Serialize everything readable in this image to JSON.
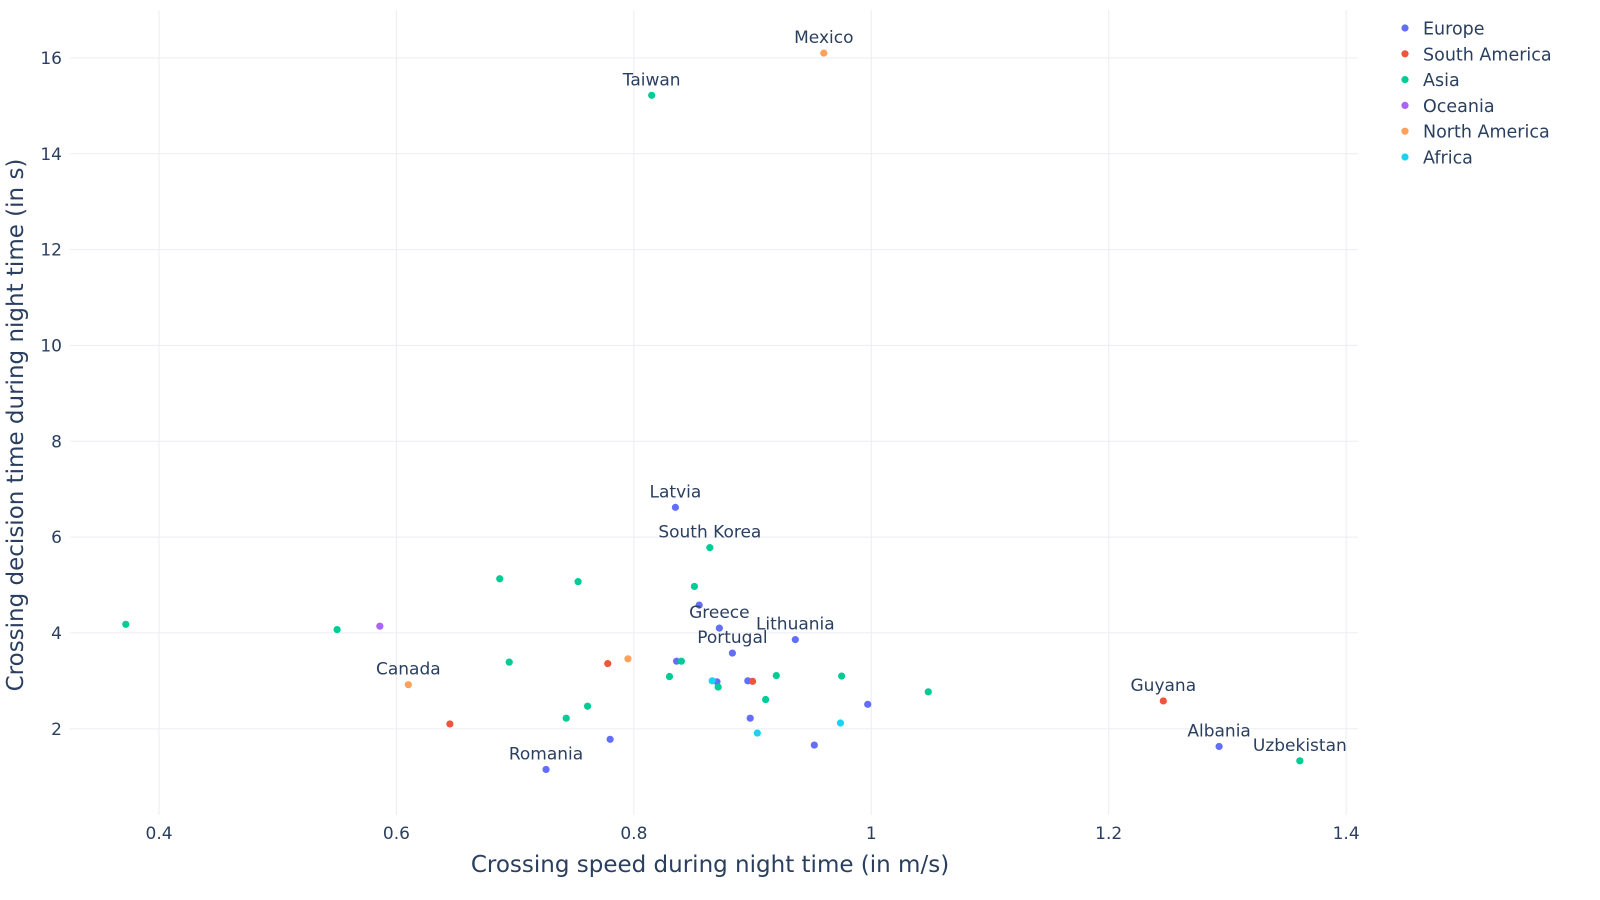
{
  "chart_data": {
    "type": "scatter",
    "title": "",
    "xlabel": "Crossing speed during night time (in m/s)",
    "ylabel": "Crossing decision time during night time (in s)",
    "xlim": [
      0.325,
      1.41
    ],
    "ylim": [
      0.2,
      17.0
    ],
    "xticks": [
      {
        "value": 0.4,
        "label": "0.4"
      },
      {
        "value": 0.6,
        "label": "0.6"
      },
      {
        "value": 0.8,
        "label": "0.8"
      },
      {
        "value": 1.0,
        "label": "1"
      },
      {
        "value": 1.2,
        "label": "1.2"
      },
      {
        "value": 1.4,
        "label": "1.4"
      }
    ],
    "yticks": [
      {
        "value": 2,
        "label": "2"
      },
      {
        "value": 4,
        "label": "4"
      },
      {
        "value": 6,
        "label": "6"
      },
      {
        "value": 8,
        "label": "8"
      },
      {
        "value": 10,
        "label": "10"
      },
      {
        "value": 12,
        "label": "12"
      },
      {
        "value": 14,
        "label": "14"
      },
      {
        "value": 16,
        "label": "16"
      }
    ],
    "grid": true,
    "legend_position": "top-right",
    "series": [
      {
        "name": "Europe",
        "color": "#636efa",
        "points": [
          {
            "x": 0.835,
            "y": 6.62,
            "label": "Latvia"
          },
          {
            "x": 0.855,
            "y": 4.58
          },
          {
            "x": 0.872,
            "y": 4.1,
            "label": "Greece"
          },
          {
            "x": 0.883,
            "y": 3.58,
            "label": "Portugal"
          },
          {
            "x": 0.936,
            "y": 3.86,
            "label": "Lithuania"
          },
          {
            "x": 0.836,
            "y": 3.41
          },
          {
            "x": 0.87,
            "y": 2.98
          },
          {
            "x": 0.896,
            "y": 3.0
          },
          {
            "x": 0.898,
            "y": 2.22
          },
          {
            "x": 0.997,
            "y": 2.51
          },
          {
            "x": 0.952,
            "y": 1.66
          },
          {
            "x": 0.78,
            "y": 1.78
          },
          {
            "x": 0.726,
            "y": 1.15,
            "label": "Romania"
          },
          {
            "x": 1.293,
            "y": 1.63,
            "label": "Albania"
          }
        ]
      },
      {
        "name": "South America",
        "color": "#EF553B",
        "points": [
          {
            "x": 0.778,
            "y": 3.36
          },
          {
            "x": 0.9,
            "y": 2.99
          },
          {
            "x": 0.645,
            "y": 2.1
          },
          {
            "x": 1.246,
            "y": 2.58,
            "label": "Guyana"
          }
        ]
      },
      {
        "name": "Asia",
        "color": "#00cc96",
        "points": [
          {
            "x": 0.815,
            "y": 15.22,
            "label": "Taiwan"
          },
          {
            "x": 0.864,
            "y": 5.78,
            "label": "South Korea"
          },
          {
            "x": 0.687,
            "y": 5.13
          },
          {
            "x": 0.753,
            "y": 5.07
          },
          {
            "x": 0.851,
            "y": 4.97
          },
          {
            "x": 0.372,
            "y": 4.18
          },
          {
            "x": 0.55,
            "y": 4.07
          },
          {
            "x": 0.695,
            "y": 3.39
          },
          {
            "x": 0.84,
            "y": 3.41
          },
          {
            "x": 0.83,
            "y": 3.09
          },
          {
            "x": 0.92,
            "y": 3.11
          },
          {
            "x": 0.975,
            "y": 3.1
          },
          {
            "x": 0.871,
            "y": 2.87
          },
          {
            "x": 1.048,
            "y": 2.77
          },
          {
            "x": 0.911,
            "y": 2.61
          },
          {
            "x": 0.761,
            "y": 2.47
          },
          {
            "x": 0.743,
            "y": 2.22
          },
          {
            "x": 1.361,
            "y": 1.33,
            "label": "Uzbekistan"
          }
        ]
      },
      {
        "name": "Oceania",
        "color": "#ab63fa",
        "points": [
          {
            "x": 0.586,
            "y": 4.14
          }
        ]
      },
      {
        "name": "North America",
        "color": "#FFA15A",
        "points": [
          {
            "x": 0.96,
            "y": 16.1,
            "label": "Mexico"
          },
          {
            "x": 0.795,
            "y": 3.46
          },
          {
            "x": 0.61,
            "y": 2.92,
            "label": "Canada"
          }
        ]
      },
      {
        "name": "Africa",
        "color": "#19d3f3",
        "points": [
          {
            "x": 0.866,
            "y": 3.0
          },
          {
            "x": 0.974,
            "y": 2.12
          },
          {
            "x": 0.904,
            "y": 1.91
          }
        ]
      }
    ]
  }
}
